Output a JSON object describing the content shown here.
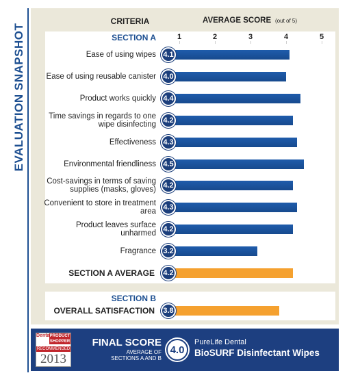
{
  "chart_data": {
    "type": "bar",
    "side_title": "EVALUATION SNAPSHOT",
    "header_criteria": "CRITERIA",
    "header_score": "AVERAGE SCORE",
    "header_score_note": "(out of 5)",
    "xlim": [
      0,
      5
    ],
    "xticks": [
      1,
      2,
      3,
      4,
      5
    ],
    "sections": [
      {
        "title": "SECTION A",
        "categories": [
          "Ease of using wipes",
          "Ease of using reusable canister",
          "Product works quickly",
          "Time savings in regards to one wipe disinfecting",
          "Effectiveness",
          "Environmental friendliness",
          "Cost-savings in terms of saving supplies (masks, gloves)",
          "Convenient to store in treatment area",
          "Product leaves surface unharmed",
          "Fragrance"
        ],
        "values": [
          4.1,
          4.0,
          4.4,
          4.2,
          4.3,
          4.5,
          4.2,
          4.3,
          4.2,
          3.2
        ],
        "value_labels": [
          "4.1",
          "4.0",
          "4.4",
          "4.2",
          "4.3",
          "4.5",
          "4.2",
          "4.3",
          "4.2",
          "3.2"
        ],
        "color": "#1f5cab",
        "average_label": "SECTION A AVERAGE",
        "average": 4.2,
        "average_color": "#f5a12f"
      },
      {
        "title": "SECTION B",
        "average_label": "OVERALL SATISFACTION",
        "average": 3.8,
        "average_color": "#f5a12f"
      }
    ],
    "final": {
      "badge_brand": "Dental",
      "badge_name": "PRODUCT SHOPPER",
      "badge_status": "RECOMMENDED",
      "badge_year": "2013",
      "title": "FINAL SCORE",
      "subtitle": "AVERAGE OF SECTIONS A AND B",
      "score": 4,
      "score_label": "4.0",
      "brand": "PureLife Dental",
      "product": "BioSURF Disinfectant Wipes"
    }
  }
}
